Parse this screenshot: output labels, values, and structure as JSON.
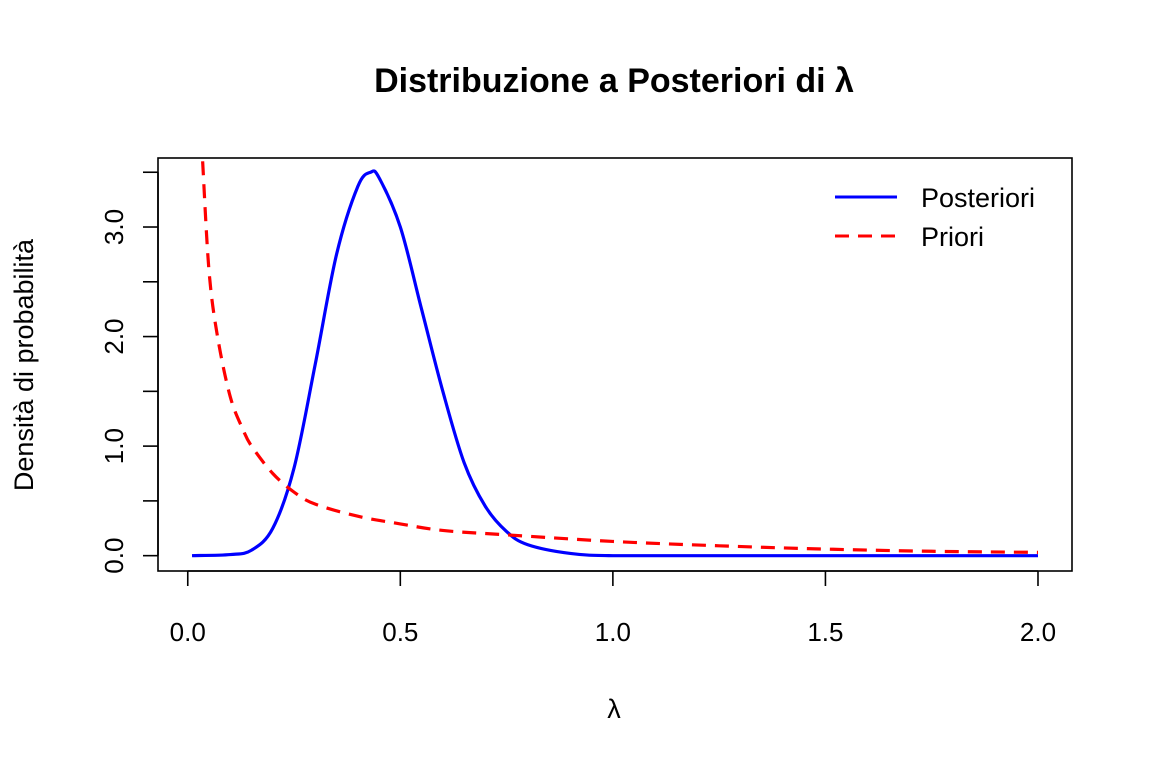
{
  "chart_data": {
    "type": "line",
    "title": "Distribuzione a Posteriori di λ",
    "xlabel": "λ",
    "ylabel": "Densità di probabilità",
    "xlim": [
      -0.07,
      2.08
    ],
    "ylim": [
      -0.14,
      3.63
    ],
    "x_ticks": [
      0.0,
      0.5,
      1.0,
      1.5,
      2.0
    ],
    "x_tick_labels": [
      "0.0",
      "0.5",
      "1.0",
      "1.5",
      "2.0"
    ],
    "y_ticks": [
      0.0,
      0.5,
      1.0,
      1.5,
      2.0,
      2.5,
      3.0,
      3.5
    ],
    "y_tick_labels": [
      "0.0",
      "",
      "1.0",
      "",
      "2.0",
      "",
      "3.0",
      ""
    ],
    "grid": false,
    "legend_position": "top-right",
    "series": [
      {
        "name": "Posteriori",
        "color": "#0000ff",
        "style": "solid",
        "x": [
          0.01,
          0.1,
          0.15,
          0.2,
          0.25,
          0.3,
          0.35,
          0.4,
          0.43,
          0.45,
          0.5,
          0.55,
          0.6,
          0.65,
          0.7,
          0.75,
          0.8,
          0.9,
          1.0,
          1.2,
          1.5,
          2.0
        ],
        "y": [
          0.0,
          0.01,
          0.05,
          0.25,
          0.8,
          1.75,
          2.75,
          3.37,
          3.5,
          3.45,
          3.0,
          2.25,
          1.5,
          0.85,
          0.45,
          0.22,
          0.1,
          0.02,
          0.0,
          0.0,
          0.0,
          0.0
        ]
      },
      {
        "name": "Priori",
        "color": "#ff0000",
        "style": "dashed",
        "x": [
          0.035,
          0.05,
          0.07,
          0.1,
          0.13,
          0.15,
          0.2,
          0.25,
          0.3,
          0.4,
          0.5,
          0.6,
          0.75,
          1.0,
          1.25,
          1.5,
          1.75,
          2.0
        ],
        "y": [
          3.6,
          2.6,
          2.0,
          1.45,
          1.15,
          1.0,
          0.75,
          0.58,
          0.47,
          0.36,
          0.29,
          0.23,
          0.19,
          0.13,
          0.09,
          0.06,
          0.04,
          0.03
        ]
      }
    ]
  }
}
